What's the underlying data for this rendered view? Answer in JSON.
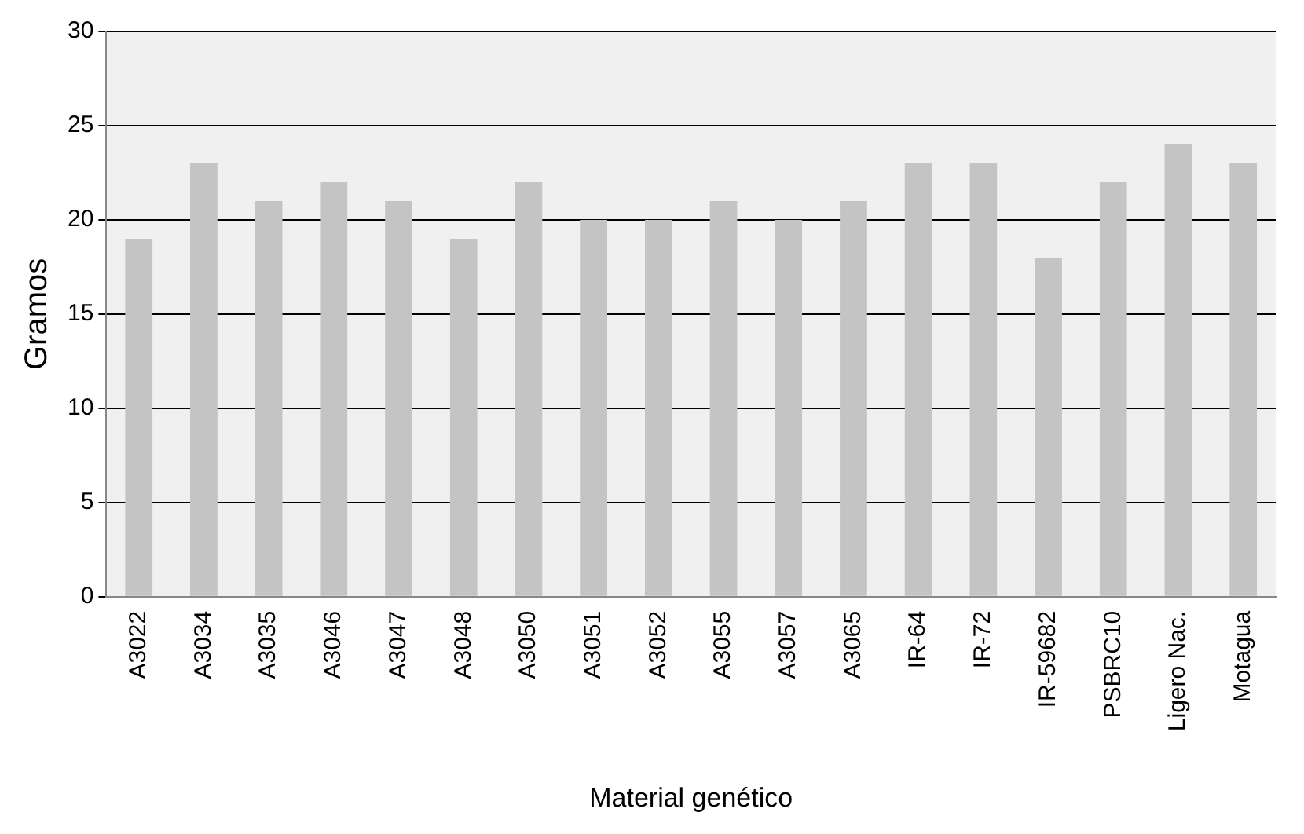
{
  "chart_data": {
    "type": "bar",
    "xlabel": "Material genético",
    "ylabel": "Gramos",
    "categories": [
      "A3022",
      "A3034",
      "A3035",
      "A3046",
      "A3047",
      "A3048",
      "A3050",
      "A3051",
      "A3052",
      "A3055",
      "A3057",
      "A3065",
      "IR-64",
      "IR-72",
      "IR-59682",
      "PSBRC10",
      "Ligero Nac.",
      "Motagua"
    ],
    "values": [
      19,
      23,
      21,
      22,
      21,
      19,
      22,
      20,
      20,
      21,
      20,
      21,
      23,
      23,
      18,
      22,
      24,
      23
    ],
    "color": "#c4c4c4",
    "ylim": [
      0,
      30
    ],
    "yticks": [
      0,
      5,
      10,
      15,
      20,
      25,
      30
    ],
    "grid": "y",
    "legend": false
  }
}
